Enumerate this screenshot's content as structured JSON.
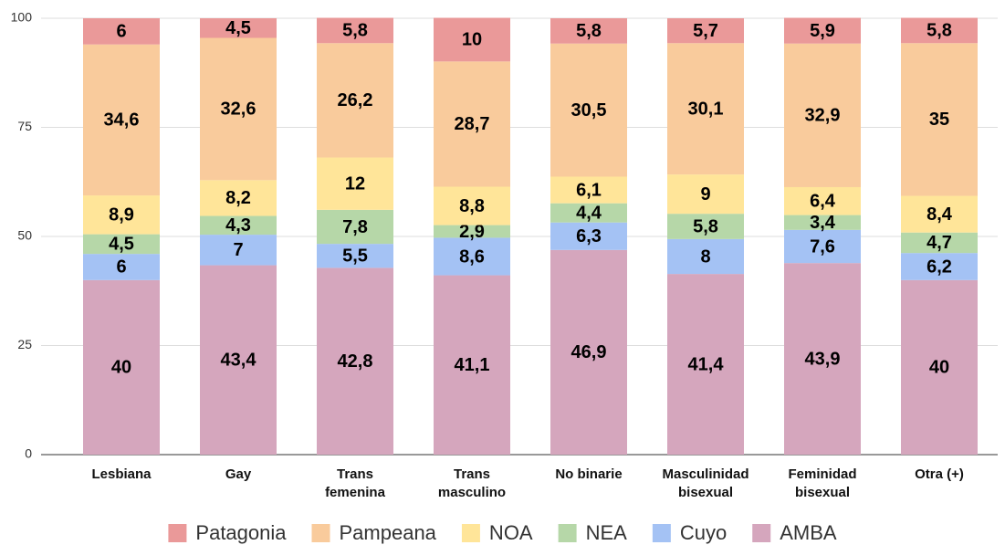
{
  "chart_data": {
    "type": "stacked_bar",
    "categories": [
      "Lesbiana",
      "Gay",
      "Trans\nfemenina",
      "Trans\nmasculino",
      "No binarie",
      "Masculinidad\nbisexual",
      "Feminidad\nbisexual",
      "Otra (+)"
    ],
    "series": [
      {
        "name": "Patagonia",
        "color": "#ea9999",
        "values": [
          6,
          4.5,
          5.8,
          10,
          5.8,
          5.7,
          5.9,
          5.8
        ],
        "value_labels": [
          "6",
          "4,5",
          "5,8",
          "10",
          "5,8",
          "5,7",
          "5,9",
          "5,8"
        ]
      },
      {
        "name": "Pampeana",
        "color": "#f9cb9c",
        "values": [
          34.6,
          32.6,
          26.2,
          28.7,
          30.5,
          30.1,
          32.9,
          35
        ],
        "value_labels": [
          "34,6",
          "32,6",
          "26,2",
          "28,7",
          "30,5",
          "30,1",
          "32,9",
          "35"
        ]
      },
      {
        "name": "NOA",
        "color": "#ffe599",
        "values": [
          8.9,
          8.2,
          12,
          8.8,
          6.1,
          9,
          6.4,
          8.4
        ],
        "value_labels": [
          "8,9",
          "8,2",
          "12",
          "8,8",
          "6,1",
          "9",
          "6,4",
          "8,4"
        ]
      },
      {
        "name": "NEA",
        "color": "#b6d7a8",
        "values": [
          4.5,
          4.3,
          7.8,
          2.9,
          4.4,
          5.8,
          3.4,
          4.7
        ],
        "value_labels": [
          "4,5",
          "4,3",
          "7,8",
          "2,9",
          "4,4",
          "5,8",
          "3,4",
          "4,7"
        ]
      },
      {
        "name": "Cuyo",
        "color": "#a4c2f4",
        "values": [
          6,
          7,
          5.5,
          8.6,
          6.3,
          8,
          7.6,
          6.2
        ],
        "value_labels": [
          "6",
          "7",
          "5,5",
          "8,6",
          "6,3",
          "8",
          "7,6",
          "6,2"
        ]
      },
      {
        "name": "AMBA",
        "color": "#d5a6bd",
        "values": [
          40,
          43.4,
          42.8,
          41.1,
          46.9,
          41.4,
          43.9,
          40
        ],
        "value_labels": [
          "40",
          "43,4",
          "42,8",
          "41,1",
          "46,9",
          "41,4",
          "43,9",
          "40"
        ]
      }
    ],
    "ylim": [
      0,
      100
    ],
    "yticks": [
      0,
      25,
      50,
      75,
      100
    ],
    "grid": true,
    "legend": "bottom"
  }
}
